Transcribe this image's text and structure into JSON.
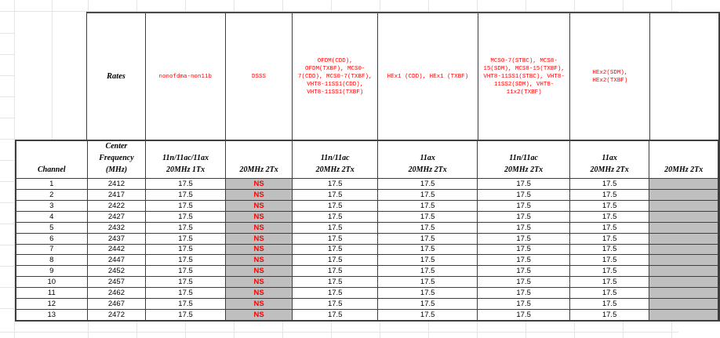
{
  "sheet": {
    "rates_label": "Rates",
    "columns": [
      {
        "header": "Channel",
        "shaded": false
      },
      {
        "header": "Center\nFrequency\n(MHz)",
        "shaded": false
      },
      {
        "header": "11n/11ac/11ax\n20MHz 1Tx",
        "rates": "nonofdma-non11b",
        "shaded": false
      },
      {
        "header": "20MHz 2Tx",
        "rates": "DSSS",
        "shaded": true
      },
      {
        "header": "11n/11ac\n20MHz 2Tx",
        "rates": "OFDM(CDD), OFDM(TXBF), MCS0-7(CDD), MCS0-7(TXBF), VHT8-11SS1(CDD), VHT8-11SS1(TXBF)",
        "shaded": false
      },
      {
        "header": "11ax\n20MHz 2Tx",
        "rates": "HEx1 (CDD), HEx1 (TXBF)",
        "shaded": false
      },
      {
        "header": "11n/11ac\n20MHz 2Tx",
        "rates": "MCS0-7(STBC), MCS8-15(SDM), MCS8-15(TXBF), VHT8-11SS1(STBC), VHT8-11SS2(SDM), VHT8-11x2(TXBF)",
        "shaded": false
      },
      {
        "header": "11ax\n20MHz 2Tx",
        "rates": "HEx2(SDM), HEx2(TXBF)",
        "shaded": false
      },
      {
        "header": "20MHz 2Tx",
        "rates": "",
        "shaded": true
      }
    ],
    "rows": [
      {
        "channel": "1",
        "freq": "2412",
        "values": [
          "17.5",
          "NS",
          "17.5",
          "17.5",
          "17.5",
          "17.5",
          ""
        ]
      },
      {
        "channel": "2",
        "freq": "2417",
        "values": [
          "17.5",
          "NS",
          "17.5",
          "17.5",
          "17.5",
          "17.5",
          ""
        ]
      },
      {
        "channel": "3",
        "freq": "2422",
        "values": [
          "17.5",
          "NS",
          "17.5",
          "17.5",
          "17.5",
          "17.5",
          ""
        ]
      },
      {
        "channel": "4",
        "freq": "2427",
        "values": [
          "17.5",
          "NS",
          "17.5",
          "17.5",
          "17.5",
          "17.5",
          ""
        ]
      },
      {
        "channel": "5",
        "freq": "2432",
        "values": [
          "17.5",
          "NS",
          "17.5",
          "17.5",
          "17.5",
          "17.5",
          ""
        ]
      },
      {
        "channel": "6",
        "freq": "2437",
        "values": [
          "17.5",
          "NS",
          "17.5",
          "17.5",
          "17.5",
          "17.5",
          ""
        ]
      },
      {
        "channel": "7",
        "freq": "2442",
        "values": [
          "17.5",
          "NS",
          "17.5",
          "17.5",
          "17.5",
          "17.5",
          ""
        ]
      },
      {
        "channel": "8",
        "freq": "2447",
        "values": [
          "17.5",
          "NS",
          "17.5",
          "17.5",
          "17.5",
          "17.5",
          ""
        ]
      },
      {
        "channel": "9",
        "freq": "2452",
        "values": [
          "17.5",
          "NS",
          "17.5",
          "17.5",
          "17.5",
          "17.5",
          ""
        ]
      },
      {
        "channel": "10",
        "freq": "2457",
        "values": [
          "17.5",
          "NS",
          "17.5",
          "17.5",
          "17.5",
          "17.5",
          ""
        ]
      },
      {
        "channel": "11",
        "freq": "2462",
        "values": [
          "17.5",
          "NS",
          "17.5",
          "17.5",
          "17.5",
          "17.5",
          ""
        ]
      },
      {
        "channel": "12",
        "freq": "2467",
        "values": [
          "17.5",
          "NS",
          "17.5",
          "17.5",
          "17.5",
          "17.5",
          ""
        ]
      },
      {
        "channel": "13",
        "freq": "2472",
        "values": [
          "17.5",
          "NS",
          "17.5",
          "17.5",
          "17.5",
          "17.5",
          ""
        ]
      }
    ],
    "colors": {
      "rate_text_red": "#FF0000",
      "ns_red": "#FF0000",
      "shaded_cell_gray": "#BFBFBF",
      "table_border_dark": "#3E3E3E",
      "gridline_gray": "#E4E4E4"
    }
  }
}
